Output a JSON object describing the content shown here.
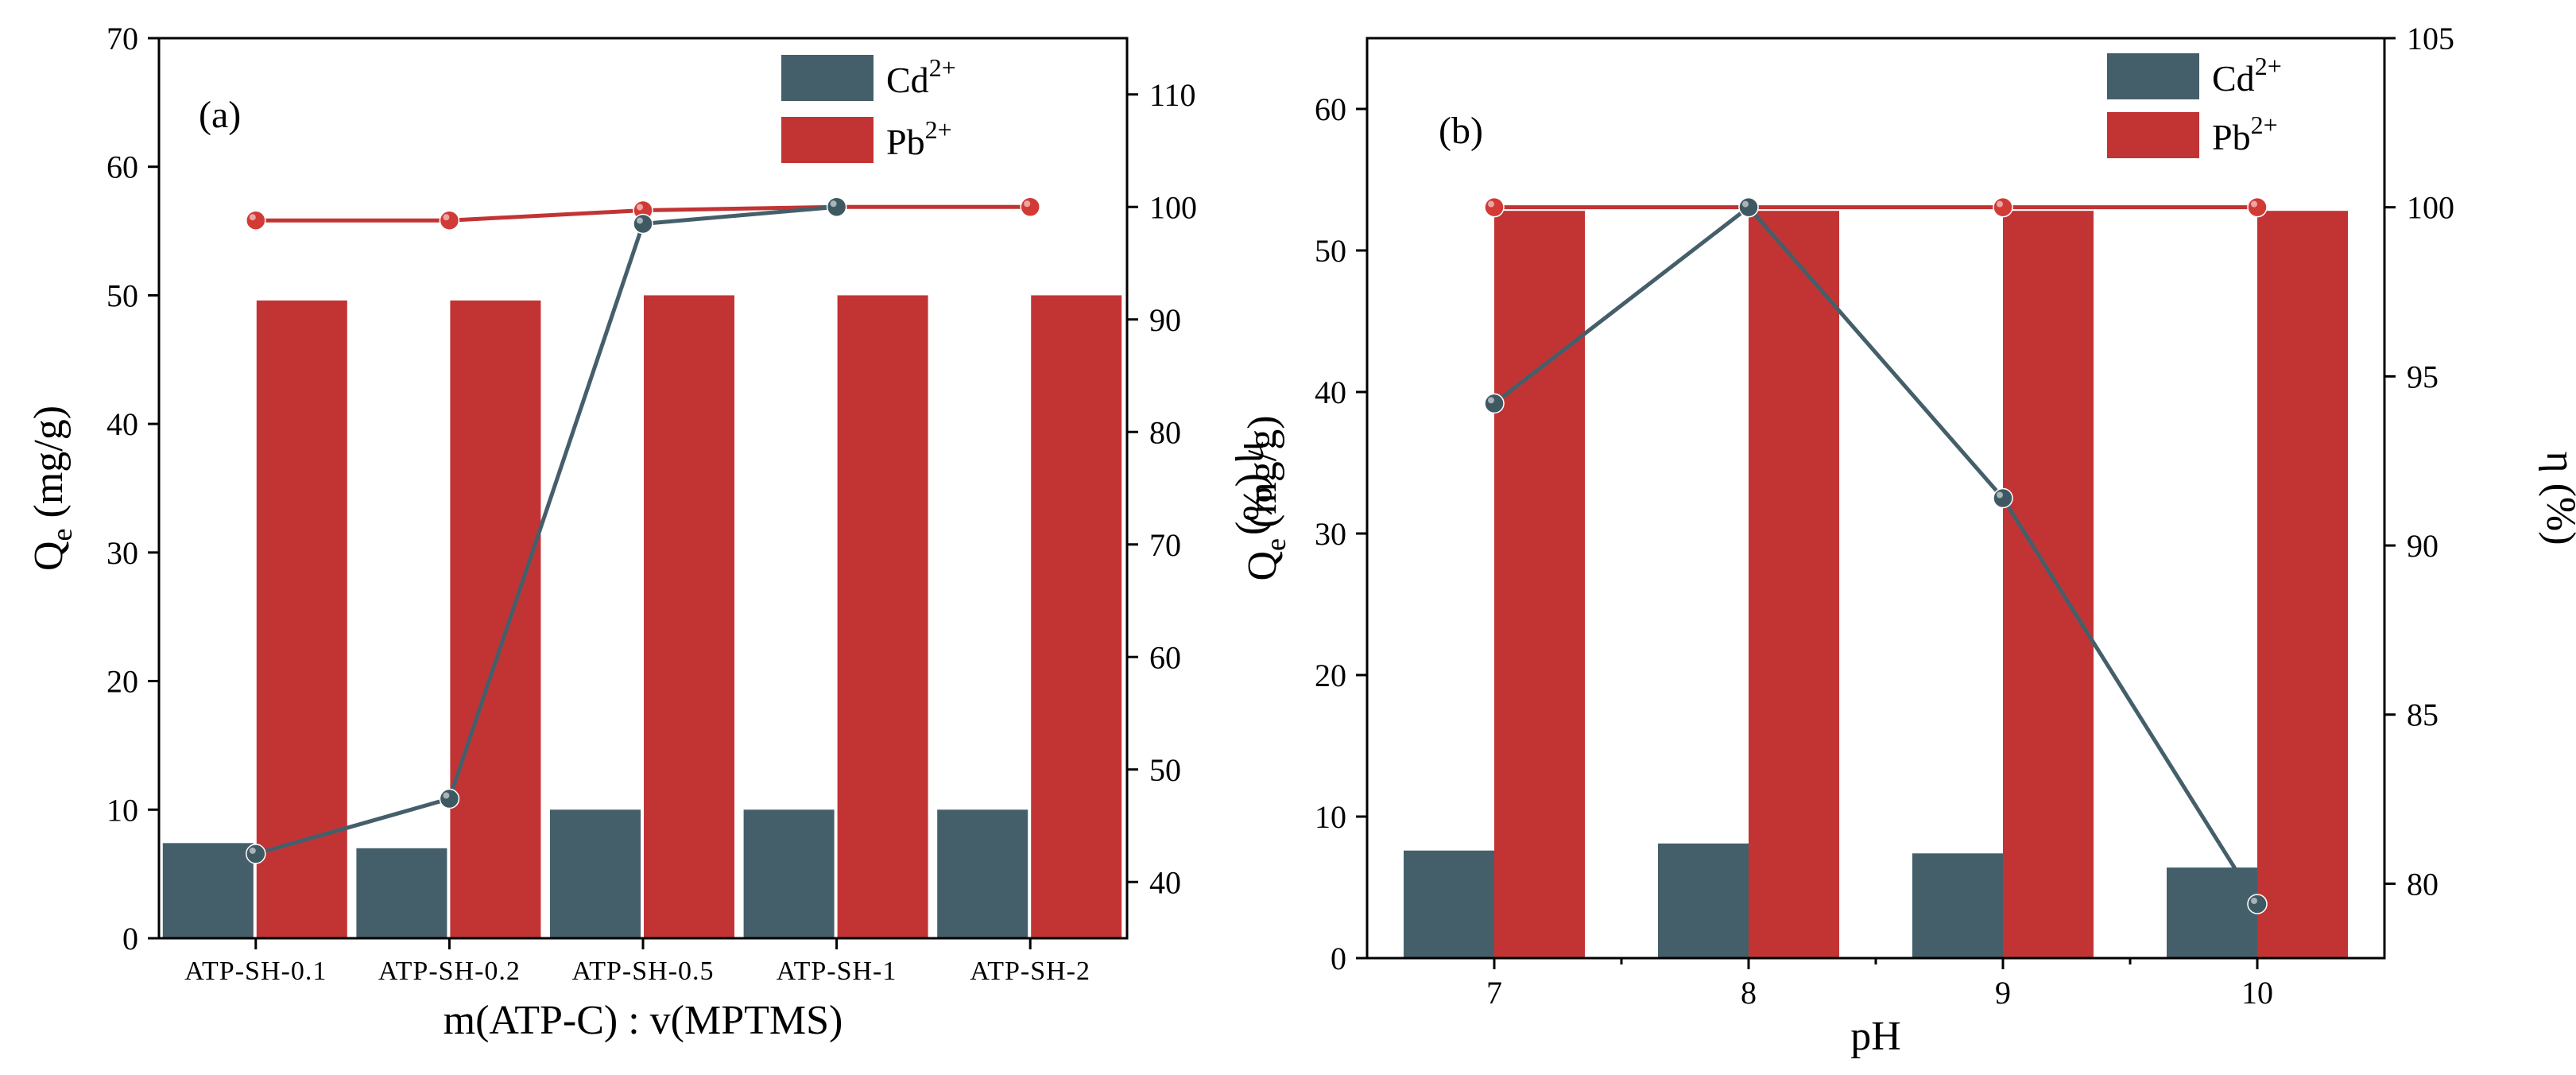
{
  "colors": {
    "cd": "#455f6a",
    "pb": "#c23434",
    "line_cd": "#455f6a",
    "line_pb": "#c23434",
    "marker_cd": "#3f5963",
    "marker_pb": "#d23a36"
  },
  "legend": {
    "cd_base": "Cd",
    "cd_sup": "2+",
    "pb_base": "Pb",
    "pb_sup": "2+",
    "placement": "top-right"
  },
  "chart_data": [
    {
      "type": "bar",
      "panel_label": "(a)",
      "xlabel": "m(ATP-C) : v(MPTMS)",
      "ylabel_base": "Q",
      "ylabel_sub": "e",
      "ylabel_rest": " (mg/g)",
      "y2label": "η (%)",
      "categories": [
        "ATP-SH-0.1",
        "ATP-SH-0.2",
        "ATP-SH-0.5",
        "ATP-SH-1",
        "ATP-SH-2"
      ],
      "ylim": [
        0,
        70
      ],
      "yticks": [
        0,
        10,
        20,
        30,
        40,
        50,
        60,
        70
      ],
      "y2lim": [
        35,
        115
      ],
      "y2ticks": [
        40,
        50,
        60,
        70,
        80,
        90,
        100,
        110
      ],
      "series": [
        {
          "name": "Cd2+",
          "kind": "bar",
          "axis": "left",
          "values": [
            7.4,
            7.0,
            10.0,
            10.0,
            10.0
          ]
        },
        {
          "name": "Pb2+",
          "kind": "bar",
          "axis": "left",
          "values": [
            49.6,
            49.6,
            50.0,
            50.0,
            50.0
          ]
        },
        {
          "name": "Cd2+ η",
          "kind": "line",
          "axis": "right",
          "values": [
            42.5,
            47.4,
            98.5,
            100.0,
            null
          ]
        },
        {
          "name": "Pb2+ η",
          "kind": "line",
          "axis": "right",
          "values": [
            98.8,
            98.8,
            99.7,
            100.0,
            100.0
          ]
        }
      ]
    },
    {
      "type": "bar",
      "panel_label": "(b)",
      "xlabel": "pH",
      "ylabel_base": "Q",
      "ylabel_sub": "e",
      "ylabel_rest": " (mg/g)",
      "y2label": "η  (%)",
      "categories": [
        "7",
        "8",
        "9",
        "10"
      ],
      "ylim": [
        0,
        65
      ],
      "yticks": [
        0,
        10,
        20,
        30,
        40,
        50,
        60
      ],
      "y2lim": [
        77.8,
        105
      ],
      "y2ticks": [
        80,
        85,
        90,
        95,
        100,
        105
      ],
      "series": [
        {
          "name": "Cd2+",
          "kind": "bar",
          "axis": "left",
          "values": [
            7.6,
            8.1,
            7.4,
            6.4
          ]
        },
        {
          "name": "Pb2+",
          "kind": "bar",
          "axis": "left",
          "values": [
            52.8,
            52.8,
            52.8,
            52.8
          ]
        },
        {
          "name": "Cd2+ η",
          "kind": "line",
          "axis": "right",
          "values": [
            94.2,
            100.0,
            91.4,
            79.4
          ]
        },
        {
          "name": "Pb2+ η",
          "kind": "line",
          "axis": "right",
          "values": [
            100.0,
            100.0,
            100.0,
            100.0
          ]
        }
      ]
    }
  ]
}
